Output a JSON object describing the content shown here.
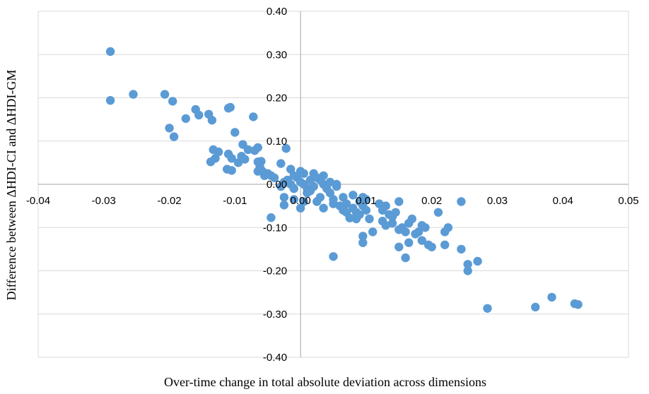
{
  "chart_data": {
    "type": "scatter",
    "title": "",
    "xlabel": "Over-time change in total absolute deviation across dimensions",
    "ylabel": "Difference between ΔHDI-CI and ΔHDI-GM",
    "xlim": [
      -0.04,
      0.05
    ],
    "ylim": [
      -0.4,
      0.4
    ],
    "x_ticks": [
      "-0.04",
      "-0.03",
      "-0.02",
      "-0.01",
      "0.00",
      "0.01",
      "0.02",
      "0.03",
      "0.04",
      "0.05"
    ],
    "y_ticks": [
      "0.40",
      "0.30",
      "0.20",
      "0.10",
      "0.00",
      "-0.10",
      "-0.20",
      "-0.30",
      "-0.40"
    ],
    "grid": "horizontal",
    "legend": "none",
    "colors": {
      "marker": "#5B9BD5",
      "grid": "#D9D9D9",
      "axis": "#A6A6A6"
    },
    "points": [
      [
        -0.029,
        0.307
      ],
      [
        -0.029,
        0.194
      ],
      [
        -0.0255,
        0.208
      ],
      [
        -0.0207,
        0.208
      ],
      [
        -0.0195,
        0.192
      ],
      [
        -0.02,
        0.13
      ],
      [
        -0.0193,
        0.11
      ],
      [
        -0.0175,
        0.152
      ],
      [
        -0.016,
        0.173
      ],
      [
        -0.0155,
        0.16
      ],
      [
        -0.014,
        0.162
      ],
      [
        -0.0135,
        0.148
      ],
      [
        -0.011,
        0.176
      ],
      [
        -0.0107,
        0.178
      ],
      [
        -0.0072,
        0.156
      ],
      [
        -0.01,
        0.12
      ],
      [
        -0.0133,
        0.08
      ],
      [
        -0.0125,
        0.075
      ],
      [
        -0.013,
        0.06
      ],
      [
        -0.0137,
        0.052
      ],
      [
        -0.011,
        0.07
      ],
      [
        -0.0105,
        0.06
      ],
      [
        -0.0112,
        0.035
      ],
      [
        -0.0105,
        0.032
      ],
      [
        -0.009,
        0.065
      ],
      [
        -0.0088,
        0.092
      ],
      [
        -0.008,
        0.08
      ],
      [
        -0.0085,
        0.058
      ],
      [
        -0.0095,
        0.05
      ],
      [
        -0.007,
        0.078
      ],
      [
        -0.0065,
        0.085
      ],
      [
        -0.0065,
        0.052
      ],
      [
        -0.006,
        0.053
      ],
      [
        -0.0062,
        0.04
      ],
      [
        -0.0058,
        0.03
      ],
      [
        -0.0065,
        0.03
      ],
      [
        -0.0055,
        0.02
      ],
      [
        -0.005,
        0.025
      ],
      [
        -0.0045,
        0.02
      ],
      [
        -0.004,
        0.015
      ],
      [
        -0.003,
        0.048
      ],
      [
        -0.0022,
        0.083
      ],
      [
        -0.0015,
        0.035
      ],
      [
        -0.001,
        0.02
      ],
      [
        -0.002,
        0.01
      ],
      [
        -0.0025,
        0.005
      ],
      [
        -0.0015,
        0.0
      ],
      [
        -0.003,
        -0.005
      ],
      [
        -0.0025,
        -0.03
      ],
      [
        -0.0025,
        -0.048
      ],
      [
        -0.001,
        -0.035
      ],
      [
        -0.0045,
        -0.077
      ],
      [
        0.0,
        -0.055
      ],
      [
        0.0005,
        -0.04
      ],
      [
        0.001,
        -0.02
      ],
      [
        -0.0005,
        0.015
      ],
      [
        0.0,
        0.005
      ],
      [
        0.0005,
        0.0
      ],
      [
        0.001,
        -0.01
      ],
      [
        0.0015,
        0.01
      ],
      [
        0.002,
        0.025
      ],
      [
        0.0025,
        0.015
      ],
      [
        0.002,
        -0.005
      ],
      [
        0.0005,
        0.025
      ],
      [
        0.003,
        0.01
      ],
      [
        0.0035,
        0.0
      ],
      [
        0.004,
        -0.01
      ],
      [
        0.003,
        -0.03
      ],
      [
        0.0035,
        -0.055
      ],
      [
        0.0045,
        -0.02
      ],
      [
        0.005,
        -0.035
      ],
      [
        0.0055,
        0.0
      ],
      [
        0.0035,
        0.02
      ],
      [
        0.0045,
        0.005
      ],
      [
        0.0055,
        -0.005
      ],
      [
        0.005,
        -0.045
      ],
      [
        0.006,
        -0.05
      ],
      [
        0.0065,
        -0.06
      ],
      [
        0.007,
        -0.065
      ],
      [
        0.0075,
        -0.078
      ],
      [
        0.008,
        -0.055
      ],
      [
        0.0085,
        -0.065
      ],
      [
        0.009,
        -0.07
      ],
      [
        0.0095,
        -0.05
      ],
      [
        0.01,
        -0.06
      ],
      [
        0.009,
        -0.04
      ],
      [
        0.008,
        -0.025
      ],
      [
        0.0065,
        -0.03
      ],
      [
        0.007,
        -0.045
      ],
      [
        0.0095,
        -0.03
      ],
      [
        0.01,
        -0.035
      ],
      [
        0.0105,
        -0.08
      ],
      [
        0.0085,
        -0.08
      ],
      [
        0.0095,
        -0.12
      ],
      [
        0.0095,
        -0.135
      ],
      [
        0.011,
        -0.11
      ],
      [
        0.0125,
        -0.06
      ],
      [
        0.012,
        -0.045
      ],
      [
        0.013,
        -0.05
      ],
      [
        0.0125,
        -0.085
      ],
      [
        0.013,
        -0.095
      ],
      [
        0.0135,
        -0.07
      ],
      [
        0.014,
        -0.075
      ],
      [
        0.0145,
        -0.065
      ],
      [
        0.015,
        -0.04
      ],
      [
        0.014,
        -0.09
      ],
      [
        0.015,
        -0.105
      ],
      [
        0.0155,
        -0.1
      ],
      [
        0.015,
        -0.145
      ],
      [
        0.016,
        -0.11
      ],
      [
        0.0165,
        -0.09
      ],
      [
        0.017,
        -0.08
      ],
      [
        0.0165,
        -0.135
      ],
      [
        0.016,
        -0.17
      ],
      [
        0.0175,
        -0.115
      ],
      [
        0.018,
        -0.11
      ],
      [
        0.0185,
        -0.095
      ],
      [
        0.019,
        -0.1
      ],
      [
        0.0185,
        -0.13
      ],
      [
        0.0195,
        -0.14
      ],
      [
        0.02,
        -0.145
      ],
      [
        0.021,
        -0.065
      ],
      [
        0.0225,
        -0.1
      ],
      [
        0.022,
        -0.11
      ],
      [
        0.022,
        -0.14
      ],
      [
        0.0245,
        -0.04
      ],
      [
        0.0245,
        -0.15
      ],
      [
        0.0255,
        -0.185
      ],
      [
        0.0255,
        -0.2
      ],
      [
        0.027,
        -0.178
      ],
      [
        0.0285,
        -0.287
      ],
      [
        0.0358,
        -0.284
      ],
      [
        0.0383,
        -0.261
      ],
      [
        0.0418,
        -0.276
      ],
      [
        0.0423,
        -0.278
      ],
      [
        0.005,
        -0.167
      ],
      [
        0.0,
        0.03
      ],
      [
        -0.001,
        -0.01
      ],
      [
        0.0015,
        -0.015
      ],
      [
        0.0025,
        -0.04
      ]
    ]
  }
}
